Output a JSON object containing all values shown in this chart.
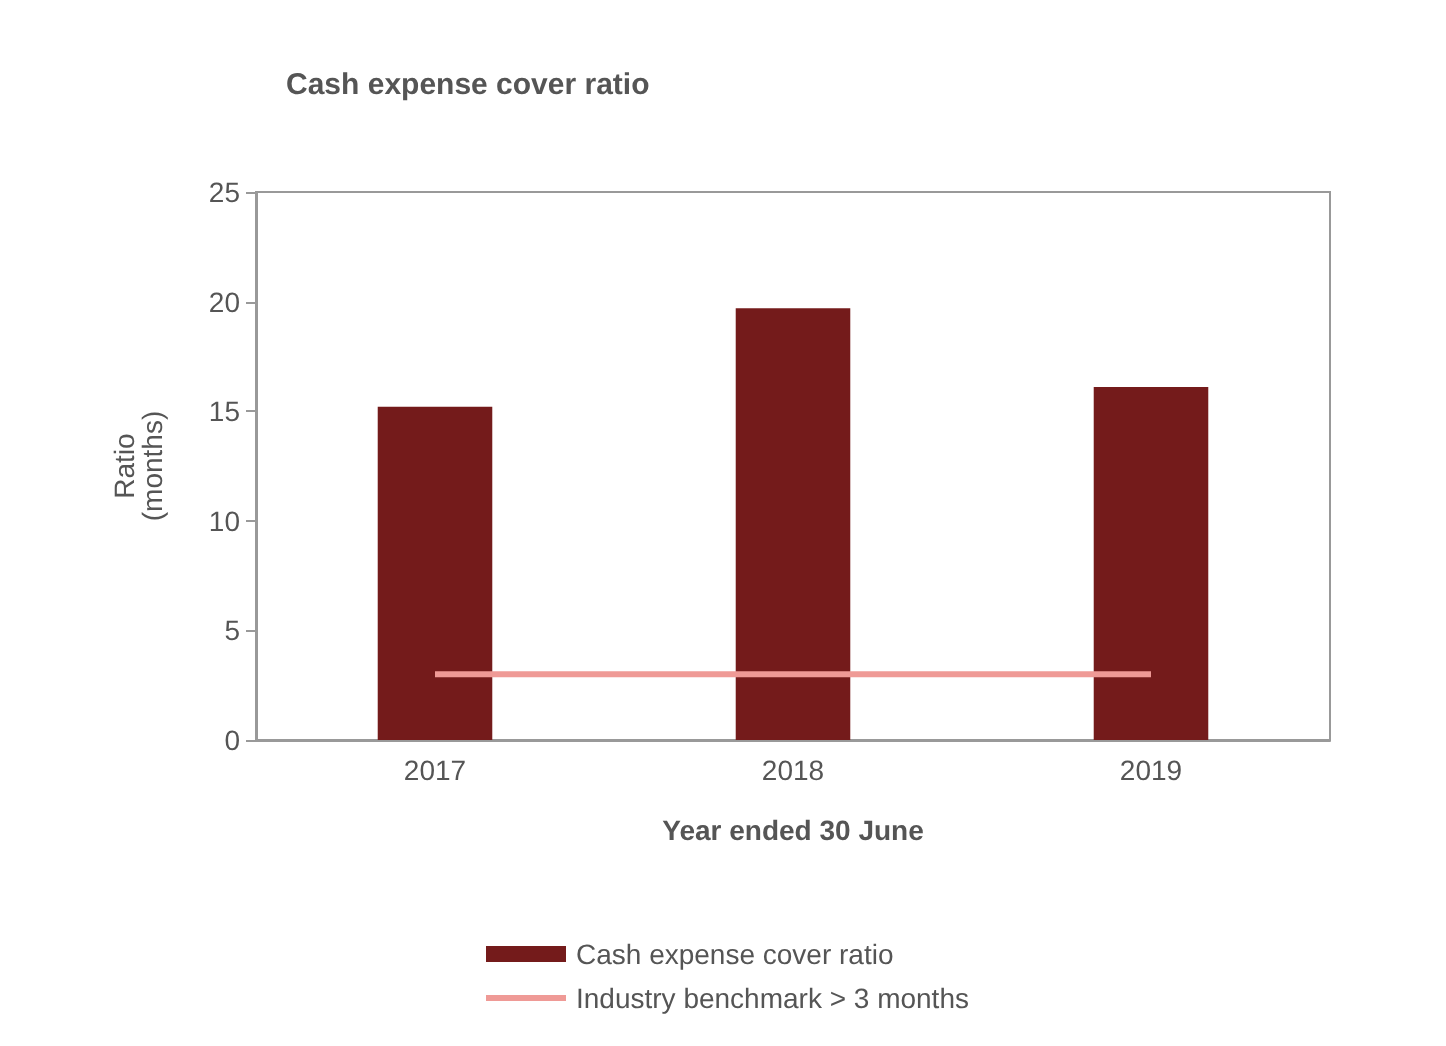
{
  "chart_data": {
    "type": "bar",
    "title": "Cash expense cover ratio",
    "xlabel": "Year ended 30 June",
    "ylabel": "Ratio\n(months)",
    "categories": [
      "2017",
      "2018",
      "2019"
    ],
    "series": [
      {
        "name": "Cash expense cover ratio",
        "color": "#741b1b",
        "values": [
          15.2,
          19.7,
          16.1
        ]
      },
      {
        "name": "Industry benchmark > 3 months",
        "type": "line",
        "color": "#ef9a96",
        "values": [
          3,
          3,
          3
        ],
        "marker": "none"
      }
    ],
    "ylim": [
      0,
      25
    ],
    "yticks": [
      0,
      5,
      10,
      15,
      20,
      25
    ],
    "grid": false,
    "legend": "bottom"
  }
}
